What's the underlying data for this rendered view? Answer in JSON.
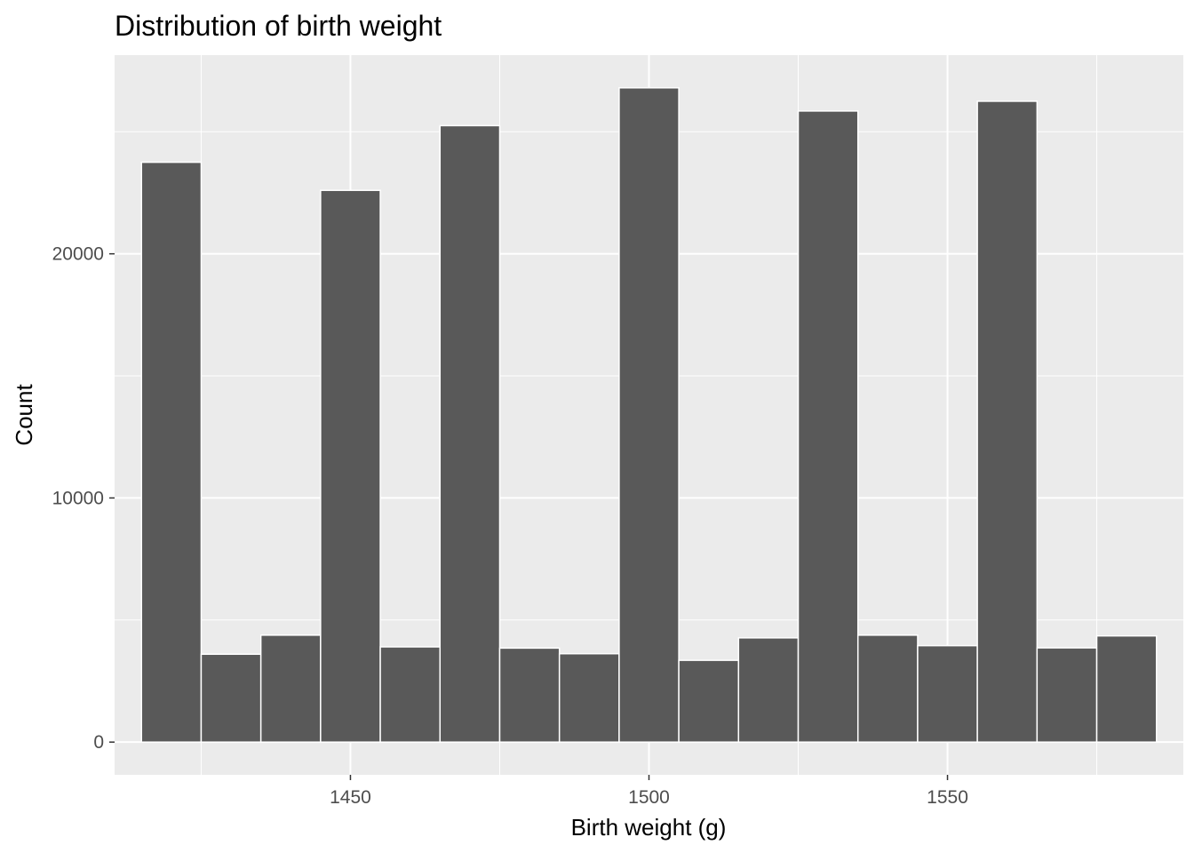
{
  "chart_data": {
    "type": "bar",
    "title": "Distribution of birth weight",
    "xlabel": "Birth weight (g)",
    "ylabel": "Count",
    "binwidth": 10,
    "bins": [
      {
        "x0": 1415,
        "x1": 1425,
        "count": 23750
      },
      {
        "x0": 1425,
        "x1": 1435,
        "count": 3600
      },
      {
        "x0": 1435,
        "x1": 1445,
        "count": 4380
      },
      {
        "x0": 1445,
        "x1": 1455,
        "count": 22600
      },
      {
        "x0": 1455,
        "x1": 1465,
        "count": 3900
      },
      {
        "x0": 1465,
        "x1": 1475,
        "count": 25250
      },
      {
        "x0": 1475,
        "x1": 1485,
        "count": 3850
      },
      {
        "x0": 1485,
        "x1": 1495,
        "count": 3620
      },
      {
        "x0": 1495,
        "x1": 1505,
        "count": 26800
      },
      {
        "x0": 1505,
        "x1": 1515,
        "count": 3350
      },
      {
        "x0": 1515,
        "x1": 1525,
        "count": 4270
      },
      {
        "x0": 1525,
        "x1": 1535,
        "count": 25850
      },
      {
        "x0": 1535,
        "x1": 1545,
        "count": 4380
      },
      {
        "x0": 1545,
        "x1": 1555,
        "count": 3950
      },
      {
        "x0": 1555,
        "x1": 1565,
        "count": 26250
      },
      {
        "x0": 1565,
        "x1": 1575,
        "count": 3860
      },
      {
        "x0": 1575,
        "x1": 1585,
        "count": 4350
      }
    ],
    "xlim": [
      1410.5,
      1589.5
    ],
    "ylim": [
      -1340,
      28140
    ],
    "x_major_ticks": [
      1450,
      1500,
      1550
    ],
    "x_minor_ticks": [
      1425,
      1475,
      1525,
      1575
    ],
    "y_major_ticks": [
      0,
      10000,
      20000
    ],
    "y_minor_ticks": [
      5000,
      15000,
      25000
    ],
    "grid": true,
    "colors": {
      "panel_background": "#ebebeb",
      "grid": "#ffffff",
      "bar_fill": "#595959",
      "bar_outline": "#ffffff"
    }
  }
}
